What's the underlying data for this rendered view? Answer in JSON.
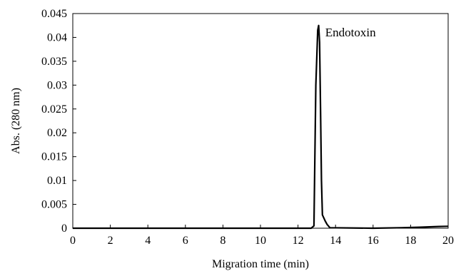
{
  "chart_data": {
    "type": "line",
    "title": "",
    "xlabel": "Migration time (min)",
    "ylabel": "Abs. (280 nm)",
    "xlim": [
      0,
      20
    ],
    "ylim": [
      0,
      0.045
    ],
    "x_ticks": [
      "0",
      "2",
      "4",
      "6",
      "8",
      "10",
      "12",
      "14",
      "16",
      "18",
      "20"
    ],
    "y_ticks": [
      "0",
      "0.005",
      "0.01",
      "0.015",
      "0.02",
      "0.025",
      "0.03",
      "0.035",
      "0.04",
      "0.045"
    ],
    "grid": false,
    "legend": "none",
    "series": [
      {
        "color": "#000000",
        "x": [
          0,
          12.7,
          12.85,
          12.95,
          13.05,
          13.1,
          13.15,
          13.2,
          13.25,
          13.3,
          13.45,
          13.55,
          13.7,
          16,
          17.5,
          18.5,
          19.5,
          20
        ],
        "y": [
          0,
          0,
          0.0005,
          0.03,
          0.0415,
          0.0425,
          0.039,
          0.025,
          0.01,
          0.0028,
          0.0015,
          0.0008,
          0.0001,
          0.0,
          0.0001,
          0.0002,
          0.00035,
          0.0004
        ]
      }
    ],
    "annotations": [
      {
        "text": "Endotoxin",
        "x": 13.3,
        "y": 0.0405
      }
    ]
  }
}
